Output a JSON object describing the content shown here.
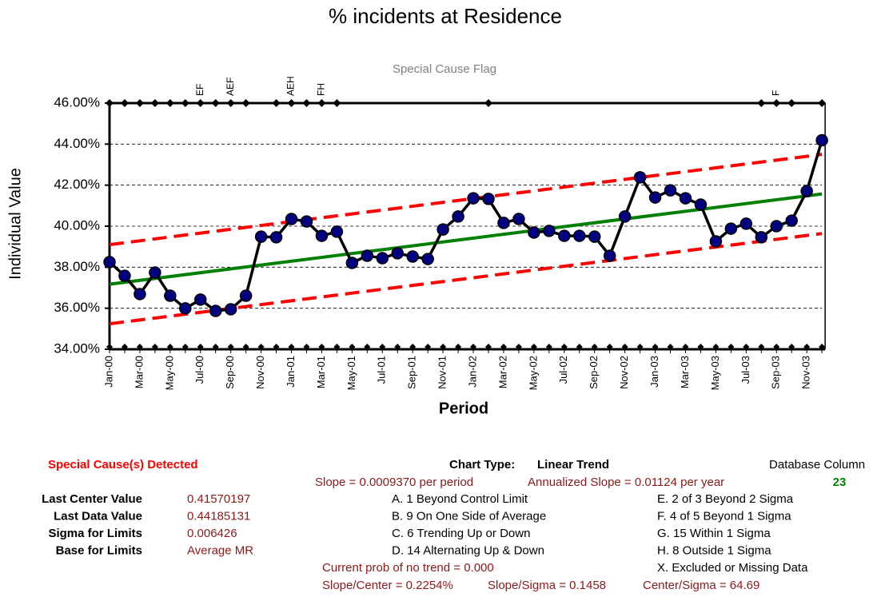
{
  "chart_data": {
    "type": "line",
    "title": "% incidents at Residence",
    "flag_title": "Special Cause Flag",
    "y_label": "Individual Value",
    "x_label": "Period",
    "categories": [
      "Jan-00",
      null,
      "Mar-00",
      null,
      "May-00",
      null,
      "Jul-00",
      null,
      "Sep-00",
      null,
      "Nov-00",
      null,
      "Jan-01",
      null,
      "Mar-01",
      null,
      "May-01",
      null,
      "Jul-01",
      null,
      "Sep-01",
      null,
      "Nov-01",
      null,
      "Jan-02",
      null,
      "Mar-02",
      null,
      "May-02",
      null,
      "Jul-02",
      null,
      "Sep-02",
      null,
      "Nov-02",
      null,
      "Jan-03",
      null,
      "Mar-03",
      null,
      "May-03",
      null,
      "Jul-03",
      null,
      "Sep-03",
      null,
      "Nov-03",
      null
    ],
    "series": [
      {
        "color": "#000000",
        "marker_color": "#000080",
        "values": [
          38.25,
          37.58,
          36.69,
          37.74,
          36.61,
          35.99,
          36.42,
          35.87,
          35.95,
          36.61,
          39.49,
          39.46,
          40.35,
          40.23,
          39.53,
          39.73,
          38.21,
          38.56,
          38.44,
          38.68,
          38.52,
          38.4,
          39.84,
          40.47,
          41.36,
          41.33,
          40.16,
          40.35,
          39.69,
          39.77,
          39.53,
          39.53,
          39.49,
          38.56,
          40.47,
          42.38,
          41.4,
          41.75,
          41.36,
          41.05,
          39.26,
          39.88,
          40.12,
          39.46,
          40.0,
          40.27,
          41.71,
          44.19
        ]
      }
    ],
    "trend_lines": [
      {
        "color": "#008000",
        "dashed": false,
        "values": [
          37.17,
          41.57
        ]
      },
      {
        "color": "#ff0000",
        "dashed": true,
        "values": [
          39.1,
          43.5
        ]
      },
      {
        "color": "#ff0000",
        "dashed": true,
        "values": [
          35.24,
          39.64
        ]
      }
    ],
    "flag_points": [
      46,
      46,
      46,
      46,
      46,
      46,
      46,
      46,
      46,
      46,
      null,
      46,
      46,
      46,
      46,
      46,
      null,
      null,
      null,
      null,
      null,
      null,
      null,
      null,
      null,
      46,
      null,
      null,
      null,
      null,
      null,
      null,
      null,
      null,
      null,
      null,
      null,
      null,
      null,
      null,
      null,
      null,
      null,
      46,
      46,
      46,
      null,
      46
    ],
    "flag_labels": [
      null,
      null,
      null,
      null,
      null,
      null,
      "EF",
      null,
      "AEF",
      null,
      null,
      null,
      "AEH",
      null,
      "FH",
      null,
      null,
      null,
      null,
      null,
      null,
      null,
      null,
      null,
      null,
      null,
      null,
      null,
      null,
      null,
      null,
      null,
      null,
      null,
      null,
      null,
      null,
      null,
      null,
      null,
      null,
      null,
      null,
      null,
      "F",
      null,
      null,
      null
    ],
    "ylim": [
      34,
      46
    ],
    "yticks": [
      {
        "value": 34,
        "label": "34.00%"
      },
      {
        "value": 36,
        "label": "36.00%"
      },
      {
        "value": 38,
        "label": "38.00%"
      },
      {
        "value": 40,
        "label": "40.00%"
      },
      {
        "value": 42,
        "label": "42.00%"
      },
      {
        "value": 44,
        "label": "44.00%"
      },
      {
        "value": 46,
        "label": "46.00%"
      }
    ],
    "grid": true
  },
  "summary": {
    "detected": "Special Cause(s) Detected",
    "chart_type_label": "Chart Type:",
    "chart_type": "Linear Trend",
    "database_column_label": "Database Column",
    "database_column": "23",
    "slope": "Slope = 0.0009370 per period",
    "annualized_slope": "Annualized Slope = 0.01124 per year",
    "stats": [
      {
        "label": "Last Center Value",
        "value": "0.41570197"
      },
      {
        "label": "Last Data Value",
        "value": "0.44185131"
      },
      {
        "label": "Sigma for Limits",
        "value": "0.006426"
      },
      {
        "label": "Base for Limits",
        "value": "Average MR"
      }
    ],
    "rules_left": [
      "A.  1 Beyond Control Limit",
      "B.  9 On One Side of Average",
      "C.  6 Trending Up or Down",
      "D.  14 Alternating  Up & Down"
    ],
    "rules_right": [
      "E.  2 of 3 Beyond 2 Sigma",
      "F.  4 of 5 Beyond 1 Sigma",
      "G.  15 Within 1 Sigma",
      "H.  8 Outside 1 Sigma",
      "X.  Excluded or Missing Data"
    ],
    "prob": "Current prob of no trend = 0.000",
    "slope_center": "Slope/Center = 0.2254%",
    "slope_sigma": "Slope/Sigma = 0.1458",
    "center_sigma": "Center/Sigma = 64.69"
  }
}
